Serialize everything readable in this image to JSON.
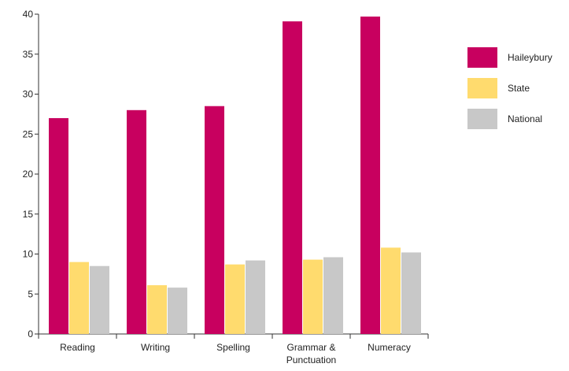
{
  "chart_data": {
    "type": "bar",
    "title": "",
    "xlabel": "",
    "ylabel": "",
    "ylim": [
      0,
      40
    ],
    "yticks": [
      0,
      5,
      10,
      15,
      20,
      25,
      30,
      35,
      40
    ],
    "categories": [
      [
        "Reading"
      ],
      [
        "Writing"
      ],
      [
        "Spelling"
      ],
      [
        "Grammar &",
        "Punctuation"
      ],
      [
        "Numeracy"
      ]
    ],
    "series": [
      {
        "name": "Haileybury",
        "color": "#c8005f",
        "values": [
          27.0,
          28.0,
          28.5,
          39.1,
          39.7
        ]
      },
      {
        "name": "State",
        "color": "#ffdb6e",
        "values": [
          9.0,
          6.1,
          8.7,
          9.3,
          10.8
        ]
      },
      {
        "name": "National",
        "color": "#c8c8c8",
        "values": [
          8.5,
          5.8,
          9.2,
          9.6,
          10.2
        ]
      }
    ],
    "grid": false,
    "legend_position": "right"
  }
}
